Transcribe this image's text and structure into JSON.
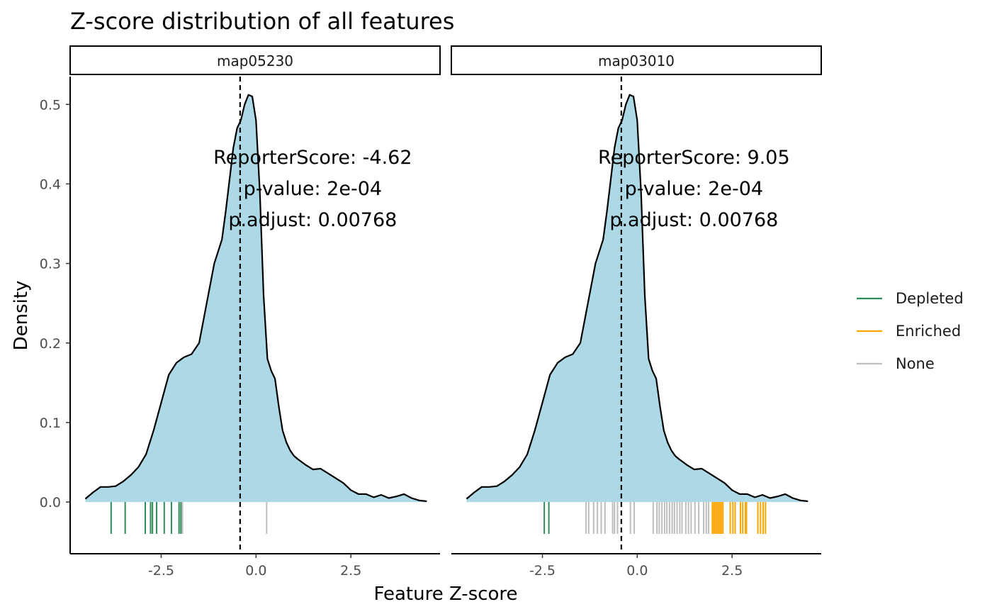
{
  "chart_data": {
    "type": "area",
    "title": "Z-score distribution of all features",
    "xlabel": "Feature Z-score",
    "ylabel": "Density",
    "xlim": [
      -4.9,
      4.85
    ],
    "ylim": [
      -0.065,
      0.535
    ],
    "x_ticks": [
      -2.5,
      0.0,
      2.5
    ],
    "x_tick_labels": [
      "-2.5",
      "0.0",
      "2.5"
    ],
    "y_ticks": [
      0.0,
      0.1,
      0.2,
      0.3,
      0.4,
      0.5
    ],
    "y_tick_labels": [
      "0.0",
      "0.1",
      "0.2",
      "0.3",
      "0.4",
      "0.5"
    ],
    "grid": false,
    "legend_position": "right",
    "legend": [
      {
        "name": "Depleted",
        "color": "#2e8b57"
      },
      {
        "name": "Enriched",
        "color": "#ffa500"
      },
      {
        "name": "None",
        "color": "#bebebe"
      }
    ],
    "fill_color": "#add8e6",
    "density_x": [
      -4.5,
      -4.3,
      -4.1,
      -3.9,
      -3.7,
      -3.5,
      -3.3,
      -3.1,
      -2.9,
      -2.7,
      -2.5,
      -2.3,
      -2.1,
      -1.9,
      -1.7,
      -1.5,
      -1.3,
      -1.1,
      -0.9,
      -0.8,
      -0.7,
      -0.6,
      -0.5,
      -0.4,
      -0.3,
      -0.2,
      -0.1,
      0.0,
      0.1,
      0.2,
      0.3,
      0.4,
      0.5,
      0.6,
      0.7,
      0.8,
      0.9,
      1.0,
      1.1,
      1.3,
      1.5,
      1.7,
      1.9,
      2.1,
      2.3,
      2.5,
      2.7,
      2.9,
      3.1,
      3.3,
      3.5,
      3.7,
      3.9,
      4.1,
      4.3,
      4.5
    ],
    "density_y": [
      0.004,
      0.012,
      0.019,
      0.019,
      0.02,
      0.026,
      0.034,
      0.044,
      0.06,
      0.09,
      0.125,
      0.16,
      0.175,
      0.182,
      0.186,
      0.2,
      0.25,
      0.3,
      0.33,
      0.365,
      0.405,
      0.445,
      0.47,
      0.48,
      0.5,
      0.512,
      0.51,
      0.48,
      0.39,
      0.26,
      0.18,
      0.165,
      0.155,
      0.12,
      0.09,
      0.075,
      0.065,
      0.058,
      0.054,
      0.047,
      0.041,
      0.042,
      0.036,
      0.03,
      0.024,
      0.015,
      0.01,
      0.01,
      0.006,
      0.009,
      0.005,
      0.007,
      0.01,
      0.005,
      0.002,
      0.001
    ],
    "panels": [
      {
        "strip": "map05230",
        "vline_x": -0.42,
        "annotation": [
          "ReporterScore: -4.62",
          "p-value: 2e-04",
          "p.adjust: 0.00768"
        ],
        "rug": [
          {
            "group": "Depleted",
            "x": [
              -3.82,
              -3.45,
              -2.92,
              -2.78,
              -2.73,
              -2.62,
              -2.42,
              -2.23,
              -2.03,
              -1.98
            ]
          },
          {
            "group": "None",
            "x": [
              -1.94,
              0.28
            ]
          }
        ]
      },
      {
        "strip": "map03010",
        "vline_x": -0.42,
        "annotation": [
          "ReporterScore: 9.05",
          "p-value: 2e-04",
          "p.adjust: 0.00768"
        ],
        "rug": [
          {
            "group": "Depleted",
            "x": [
              -2.45,
              -2.33
            ]
          },
          {
            "group": "None",
            "x": [
              -1.35,
              -1.28,
              -1.15,
              -1.05,
              -0.95,
              -0.85,
              -0.65,
              -0.6,
              -0.52,
              -0.18,
              -0.08,
              0.42,
              0.52,
              0.58,
              0.65,
              0.72,
              0.78,
              0.85,
              0.92,
              0.98,
              1.05,
              1.12,
              1.18,
              1.28,
              1.35,
              1.42,
              1.52,
              1.62,
              1.75,
              1.82,
              1.88
            ]
          },
          {
            "group": "Enriched",
            "x": [
              1.98,
              2.02,
              2.06,
              2.1,
              2.14,
              2.18,
              2.22,
              2.26,
              2.45,
              2.52,
              2.58,
              2.72,
              2.78,
              2.85,
              2.88,
              3.18,
              3.25,
              3.32,
              3.38
            ]
          }
        ]
      }
    ]
  }
}
